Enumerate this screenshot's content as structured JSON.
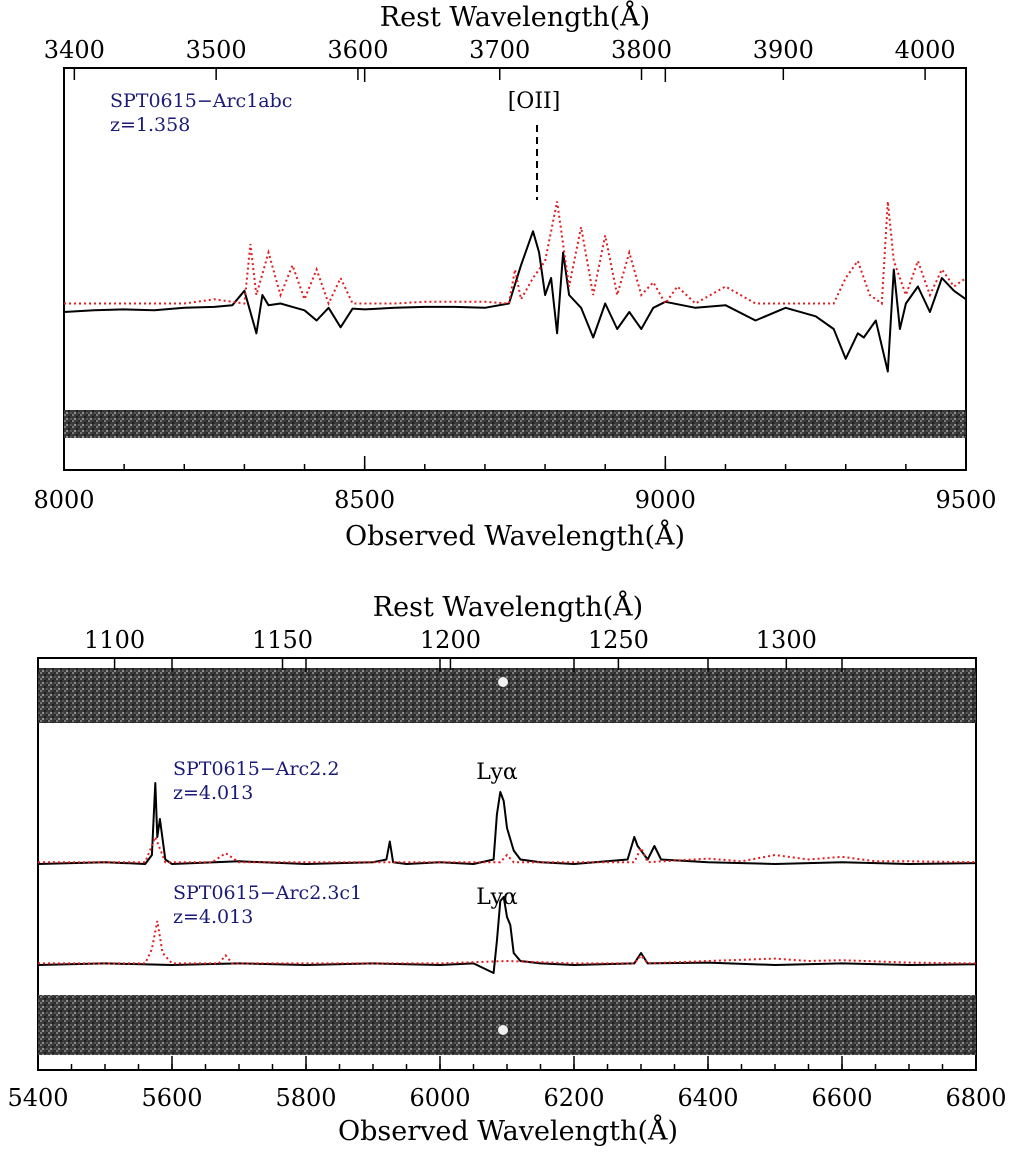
{
  "colors": {
    "object_spectrum": "#000000",
    "sky_spectrum": "#e41a1c",
    "annotation_text": "#1a1a78"
  },
  "chart_data": [
    {
      "type": "line",
      "panel": "top",
      "title": "",
      "xlabel_bottom": "Observed Wavelength(Å)",
      "xlabel_top": "Rest Wavelength(Å)",
      "ylabel": "",
      "xlim": [
        8000,
        9500
      ],
      "ticks_bottom": [
        "8000",
        "8500",
        "9000",
        "9500"
      ],
      "ticks_top": [
        "3400",
        "3500",
        "3600",
        "3700",
        "3800",
        "3900",
        "4000"
      ],
      "redshift": 1.358,
      "annotations": [
        {
          "text": "SPT0615−Arc1abc",
          "kind": "object-name"
        },
        {
          "text": "z=1.358",
          "kind": "redshift"
        },
        {
          "text": "[OII]",
          "kind": "line-marker",
          "x": 8787
        }
      ],
      "series": [
        {
          "style": "solid",
          "x": [
            8000,
            8050,
            8100,
            8150,
            8200,
            8250,
            8280,
            8300,
            8320,
            8330,
            8340,
            8360,
            8380,
            8400,
            8420,
            8440,
            8460,
            8480,
            8500,
            8550,
            8600,
            8650,
            8700,
            8740,
            8760,
            8780,
            8790,
            8800,
            8810,
            8820,
            8830,
            8840,
            8860,
            8880,
            8900,
            8920,
            8940,
            8960,
            8980,
            9000,
            9050,
            9100,
            9150,
            9200,
            9250,
            9280,
            9300,
            9320,
            9330,
            9350,
            9370,
            9380,
            9390,
            9400,
            9420,
            9440,
            9460,
            9480,
            9500
          ],
          "y": [
            0.0,
            0.02,
            0.03,
            0.02,
            0.05,
            0.06,
            0.08,
            0.25,
            -0.25,
            0.2,
            0.08,
            0.1,
            0.06,
            0.02,
            -0.1,
            0.05,
            -0.18,
            0.04,
            0.03,
            0.05,
            0.06,
            0.06,
            0.05,
            0.1,
            0.55,
            0.95,
            0.7,
            0.2,
            0.4,
            -0.25,
            0.7,
            0.2,
            0.05,
            -0.3,
            0.1,
            -0.2,
            0.0,
            -0.2,
            0.05,
            0.12,
            0.05,
            0.08,
            -0.1,
            0.05,
            -0.05,
            -0.2,
            -0.55,
            -0.25,
            -0.3,
            -0.1,
            -0.7,
            0.5,
            -0.2,
            0.1,
            0.3,
            0.0,
            0.4,
            0.25,
            0.15
          ]
        },
        {
          "style": "dotted",
          "x": [
            8000,
            8100,
            8200,
            8250,
            8300,
            8310,
            8320,
            8340,
            8360,
            8380,
            8400,
            8420,
            8440,
            8460,
            8480,
            8500,
            8550,
            8600,
            8650,
            8700,
            8740,
            8750,
            8760,
            8780,
            8800,
            8820,
            8840,
            8860,
            8880,
            8900,
            8920,
            8940,
            8960,
            8980,
            9000,
            9020,
            9050,
            9100,
            9150,
            9200,
            9250,
            9280,
            9300,
            9320,
            9340,
            9360,
            9370,
            9380,
            9400,
            9420,
            9440,
            9460,
            9480,
            9500
          ],
          "y": [
            0.1,
            0.1,
            0.1,
            0.15,
            0.1,
            0.8,
            0.2,
            0.7,
            0.2,
            0.55,
            0.15,
            0.5,
            0.1,
            0.4,
            0.1,
            0.1,
            0.1,
            0.12,
            0.12,
            0.12,
            0.1,
            0.5,
            0.15,
            0.4,
            0.6,
            1.3,
            0.3,
            1.0,
            0.2,
            0.9,
            0.2,
            0.7,
            0.2,
            0.35,
            0.1,
            0.3,
            0.1,
            0.3,
            0.1,
            0.1,
            0.1,
            0.1,
            0.4,
            0.6,
            0.2,
            0.1,
            1.3,
            0.6,
            0.2,
            0.6,
            0.2,
            0.5,
            0.3,
            0.4
          ]
        }
      ]
    },
    {
      "type": "line",
      "panel": "bottom",
      "title": "",
      "xlabel_bottom": "Observed Wavelength(Å)",
      "xlabel_top": "Rest Wavelength(Å)",
      "ylabel": "",
      "xlim": [
        5400,
        6800
      ],
      "ticks_bottom": [
        "5400",
        "5600",
        "5800",
        "6000",
        "6200",
        "6400",
        "6600",
        "6800"
      ],
      "ticks_top": [
        "1100",
        "1150",
        "1200",
        "1250",
        "1300"
      ],
      "redshift": 4.013,
      "subpanels": [
        {
          "annotations": [
            {
              "text": "SPT0615−Arc2.2",
              "kind": "object-name"
            },
            {
              "text": "z=4.013",
              "kind": "redshift"
            },
            {
              "text": "Lyα",
              "kind": "line-marker"
            }
          ],
          "series": [
            {
              "style": "solid",
              "x": [
                5400,
                5500,
                5560,
                5570,
                5575,
                5578,
                5582,
                5590,
                5600,
                5700,
                5800,
                5900,
                5920,
                5925,
                5930,
                5950,
                6000,
                6050,
                6080,
                6085,
                6090,
                6095,
                6100,
                6110,
                6120,
                6150,
                6200,
                6280,
                6290,
                6295,
                6300,
                6310,
                6320,
                6330,
                6400,
                6500,
                6600,
                6700,
                6800
              ],
              "y": [
                0.0,
                0.02,
                0.0,
                0.1,
                0.9,
                0.3,
                0.5,
                0.05,
                0.0,
                0.03,
                0.0,
                0.02,
                0.05,
                0.25,
                0.02,
                0.0,
                0.02,
                0.0,
                0.05,
                0.55,
                0.8,
                0.7,
                0.4,
                0.15,
                0.05,
                0.02,
                0.0,
                0.05,
                0.3,
                0.2,
                0.15,
                0.05,
                0.2,
                0.05,
                0.02,
                0.0,
                0.02,
                0.0,
                0.01
              ]
            },
            {
              "style": "dotted",
              "x": [
                5400,
                5500,
                5560,
                5575,
                5590,
                5660,
                5680,
                5700,
                5800,
                5900,
                6000,
                6090,
                6100,
                6110,
                6200,
                6290,
                6300,
                6310,
                6400,
                6450,
                6500,
                6550,
                6600,
                6650,
                6700,
                6800
              ],
              "y": [
                0.02,
                0.02,
                0.02,
                0.3,
                0.02,
                0.02,
                0.12,
                0.02,
                0.02,
                0.02,
                0.02,
                0.02,
                0.1,
                0.02,
                0.02,
                0.02,
                0.18,
                0.02,
                0.06,
                0.03,
                0.1,
                0.05,
                0.08,
                0.03,
                0.03,
                0.02
              ]
            }
          ]
        },
        {
          "annotations": [
            {
              "text": "SPT0615−Arc2.3c1",
              "kind": "object-name"
            },
            {
              "text": "z=4.013",
              "kind": "redshift"
            },
            {
              "text": "Lyα",
              "kind": "line-marker"
            }
          ],
          "series": [
            {
              "style": "solid",
              "x": [
                5400,
                5500,
                5600,
                5700,
                5800,
                5900,
                6000,
                6050,
                6080,
                6085,
                6090,
                6095,
                6100,
                6105,
                6110,
                6120,
                6150,
                6200,
                6290,
                6300,
                6310,
                6400,
                6500,
                6600,
                6700,
                6800
              ],
              "y": [
                0.0,
                0.02,
                0.0,
                0.02,
                0.0,
                0.02,
                0.0,
                0.02,
                -0.1,
                0.3,
                0.8,
                0.85,
                0.6,
                0.5,
                0.15,
                0.05,
                0.02,
                0.0,
                0.02,
                0.15,
                0.02,
                0.03,
                0.0,
                0.02,
                0.0,
                0.01
              ]
            },
            {
              "style": "dotted",
              "x": [
                5400,
                5500,
                5560,
                5570,
                5578,
                5586,
                5600,
                5670,
                5680,
                5690,
                5800,
                5900,
                6000,
                6100,
                6200,
                6290,
                6300,
                6310,
                6400,
                6500,
                6550,
                6600,
                6700,
                6800
              ],
              "y": [
                0.02,
                0.02,
                0.02,
                0.2,
                0.55,
                0.15,
                0.02,
                0.02,
                0.12,
                0.02,
                0.02,
                0.02,
                0.02,
                0.05,
                0.02,
                0.02,
                0.12,
                0.02,
                0.05,
                0.08,
                0.05,
                0.06,
                0.03,
                0.02
              ]
            }
          ]
        }
      ]
    }
  ]
}
